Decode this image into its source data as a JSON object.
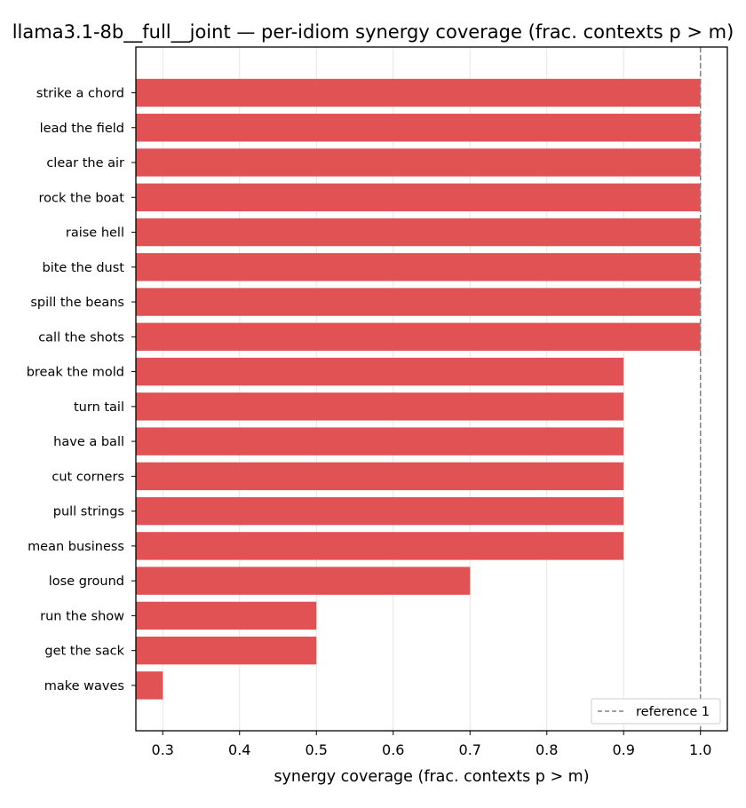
{
  "chart_data": {
    "type": "bar",
    "orientation": "horizontal",
    "title": "llama3.1-8b__full__joint — per-idiom synergy coverage  (frac. contexts p > m)",
    "xlabel": "synergy coverage  (frac. contexts p > m)",
    "ylabel": "",
    "xlim": [
      0.265,
      1.035
    ],
    "xticks": [
      "0.3",
      "0.4",
      "0.5",
      "0.6",
      "0.7",
      "0.8",
      "0.9",
      "1.0"
    ],
    "grid": "vertical",
    "bar_color": "#e05254",
    "categories": [
      "strike a chord",
      "lead the field",
      "clear the air",
      "rock the boat",
      "raise hell",
      "bite the dust",
      "spill the beans",
      "call the shots",
      "break the mold",
      "turn tail",
      "have a ball",
      "cut corners",
      "pull strings",
      "mean business",
      "lose ground",
      "run the show",
      "get the sack",
      "make waves"
    ],
    "values": [
      1.0,
      1.0,
      1.0,
      1.0,
      1.0,
      1.0,
      1.0,
      1.0,
      0.9,
      0.9,
      0.9,
      0.9,
      0.9,
      0.9,
      0.7,
      0.5,
      0.5,
      0.3
    ],
    "reference_line": {
      "value": 1.0,
      "style": "dashed",
      "color": "#808080",
      "label": "reference 1"
    },
    "legend_position": "lower-right"
  }
}
